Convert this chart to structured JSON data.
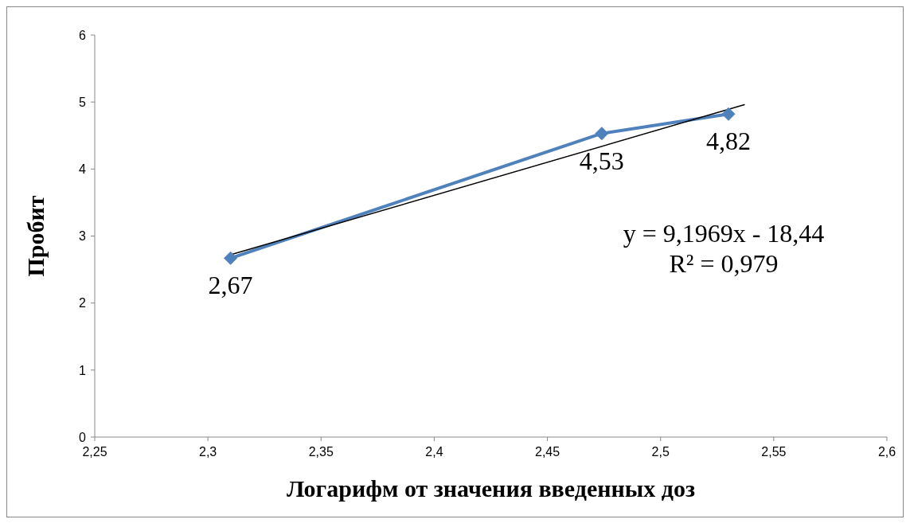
{
  "chart_data": {
    "type": "line",
    "xlabel": "Логарифм от значения введенных доз",
    "ylabel": "Пробит",
    "series": [
      {
        "type": "line",
        "color": "#4f81bd",
        "x": [
          2.31,
          2.474,
          2.53
        ],
        "values": [
          2.67,
          4.53,
          4.82
        ],
        "value_labels": [
          "2,67",
          "4,53",
          "4,82"
        ],
        "marker": "diamond"
      },
      {
        "type": "line",
        "color": "#000000",
        "x": [
          2.31,
          2.537
        ],
        "values": [
          2.72,
          4.96
        ],
        "marker": "none"
      }
    ],
    "xlim": [
      2.25,
      2.6
    ],
    "xticks": [
      {
        "value": 2.25,
        "label": "2,25"
      },
      {
        "value": 2.3,
        "label": "2,3"
      },
      {
        "value": 2.35,
        "label": "2,35"
      },
      {
        "value": 2.4,
        "label": "2,4"
      },
      {
        "value": 2.45,
        "label": "2,45"
      },
      {
        "value": 2.5,
        "label": "2,5"
      },
      {
        "value": 2.55,
        "label": "2,55"
      },
      {
        "value": 2.6,
        "label": "2,6"
      }
    ],
    "ylim": [
      0,
      6
    ],
    "yticks": [
      0,
      1,
      2,
      3,
      4,
      5,
      6
    ],
    "annotations": [
      "y = 9,1969x - 18,44",
      "R² = 0,979"
    ],
    "grid": false,
    "legend": false,
    "line_style": "solid"
  }
}
